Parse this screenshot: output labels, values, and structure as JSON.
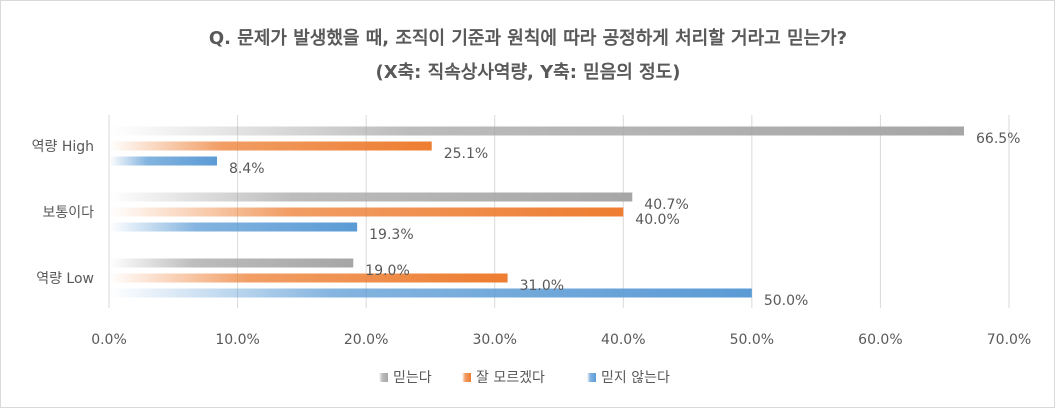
{
  "chart_data": {
    "type": "bar",
    "orientation": "horizontal",
    "title": "Q. 문제가 발생했을 때, 조직이 기준과 원칙에 따라 공정하게 처리할 거라고 믿는가?",
    "subtitle": "(X축: 직속상사역량, Y축: 믿음의 정도)",
    "categories": [
      "역량 High",
      "보통이다",
      "역량 Low"
    ],
    "series": [
      {
        "name": "믿는다",
        "values": [
          66.5,
          40.7,
          19.0
        ],
        "labels": [
          "66.5%",
          "40.7%",
          "19.0%"
        ],
        "color": "#a6a6a6"
      },
      {
        "name": "잘 모르겠다",
        "values": [
          25.1,
          40.0,
          31.0
        ],
        "labels": [
          "25.1%",
          "40.0%",
          "31.0%"
        ],
        "color": "#ed7d31"
      },
      {
        "name": "믿지 않는다",
        "values": [
          8.4,
          19.3,
          50.0
        ],
        "labels": [
          "8.4%",
          "19.3%",
          "50.0%"
        ],
        "color": "#5b9bd5"
      }
    ],
    "xlim": [
      0,
      70
    ],
    "xticks": [
      0,
      10,
      20,
      30,
      40,
      50,
      60,
      70
    ],
    "xtick_labels": [
      "0.0%",
      "10.0%",
      "20.0%",
      "30.0%",
      "40.0%",
      "50.0%",
      "60.0%",
      "70.0%"
    ],
    "grid": true,
    "legend_position": "bottom"
  }
}
